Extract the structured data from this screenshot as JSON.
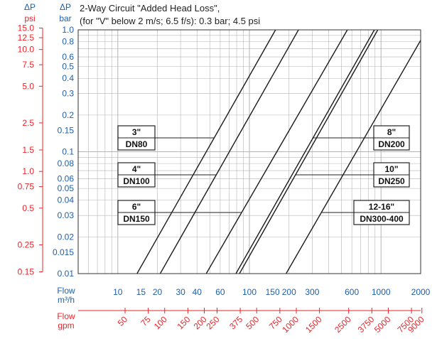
{
  "chart_data": {
    "type": "line",
    "title": "2-Way Circuit \"Added Head Loss\",",
    "subtitle": "(for \"V\" below 2 m/s; 6.5 f/s): 0.3 bar; 4.5 psi",
    "y_left_unit_symbol": "ΔP",
    "y_left_unit": "psi",
    "y_right_unit_symbol": "ΔP",
    "y_right_unit": "bar",
    "x_label": "Flow",
    "x_unit": "m³/h",
    "x2_label": "Flow",
    "x2_unit": "gpm",
    "x_scale": "log",
    "y_scale": "log",
    "xlim": [
      5,
      2000
    ],
    "ylim": [
      0.01,
      1.0
    ],
    "grid": true,
    "y_bar_ticks": [
      {
        "label": "1.0",
        "value": 1.0
      },
      {
        "label": "0.8",
        "value": 0.8
      },
      {
        "label": "0.6",
        "value": 0.6
      },
      {
        "label": "0.5",
        "value": 0.5
      },
      {
        "label": "0.4",
        "value": 0.4
      },
      {
        "label": "0.3",
        "value": 0.3
      },
      {
        "label": "0.2",
        "value": 0.2
      },
      {
        "label": "0.15",
        "value": 0.15
      },
      {
        "label": "0.1",
        "value": 0.1
      },
      {
        "label": "0.08",
        "value": 0.08
      },
      {
        "label": "0.06",
        "value": 0.06
      },
      {
        "label": "0.05",
        "value": 0.05
      },
      {
        "label": "0.04",
        "value": 0.04
      },
      {
        "label": "0.03",
        "value": 0.03
      },
      {
        "label": "0.02",
        "value": 0.02
      },
      {
        "label": "0.015",
        "value": 0.015
      },
      {
        "label": "0.01",
        "value": 0.01
      }
    ],
    "y_psi_ticks": [
      {
        "label": "15.0",
        "value": 15.0
      },
      {
        "label": "12.5",
        "value": 12.5
      },
      {
        "label": "10.0",
        "value": 10.0
      },
      {
        "label": "7.5",
        "value": 7.5
      },
      {
        "label": "5.0",
        "value": 5.0
      },
      {
        "label": "2.5",
        "value": 2.5
      },
      {
        "label": "1.5",
        "value": 1.5
      },
      {
        "label": "1.0",
        "value": 1.0
      },
      {
        "label": "0.75",
        "value": 0.75
      },
      {
        "label": "0.5",
        "value": 0.5
      },
      {
        "label": "0.25",
        "value": 0.25
      },
      {
        "label": "0.15",
        "value": 0.15
      }
    ],
    "x_m3h_ticks": [
      {
        "label": "10",
        "value": 10
      },
      {
        "label": "15",
        "value": 15
      },
      {
        "label": "20",
        "value": 20
      },
      {
        "label": "30",
        "value": 30
      },
      {
        "label": "40",
        "value": 40
      },
      {
        "label": "60",
        "value": 60
      },
      {
        "label": "100",
        "value": 100
      },
      {
        "label": "150",
        "value": 150
      },
      {
        "label": "200",
        "value": 200
      },
      {
        "label": "300",
        "value": 300
      },
      {
        "label": "600",
        "value": 600
      },
      {
        "label": "1000",
        "value": 1000
      },
      {
        "label": "2000",
        "value": 2000
      }
    ],
    "x_gpm_ticks": [
      {
        "label": "50",
        "value": 50
      },
      {
        "label": "75",
        "value": 75
      },
      {
        "label": "100",
        "value": 100
      },
      {
        "label": "150",
        "value": 150
      },
      {
        "label": "200",
        "value": 200
      },
      {
        "label": "250",
        "value": 250
      },
      {
        "label": "375",
        "value": 375
      },
      {
        "label": "500",
        "value": 500
      },
      {
        "label": "750",
        "value": 750
      },
      {
        "label": "1000",
        "value": 1000
      },
      {
        "label": "1500",
        "value": 1500
      },
      {
        "label": "2500",
        "value": 2500
      },
      {
        "label": "3750",
        "value": 3750
      },
      {
        "label": "5000",
        "value": 5000
      },
      {
        "label": "7500",
        "value": 7500
      },
      {
        "label": "9000",
        "value": 9000
      }
    ],
    "series": [
      {
        "size": "3\"",
        "dn": "DN80",
        "points": [
          [
            14,
            0.01
          ],
          [
            158,
            1.0
          ]
        ]
      },
      {
        "size": "4\"",
        "dn": "DN100",
        "points": [
          [
            21,
            0.01
          ],
          [
            236,
            1.0
          ]
        ]
      },
      {
        "size": "6\"",
        "dn": "DN150",
        "points": [
          [
            47,
            0.01
          ],
          [
            555,
            1.0
          ]
        ]
      },
      {
        "size": "8\"",
        "dn": "DN200",
        "points": [
          [
            79,
            0.01
          ],
          [
            890,
            1.0
          ]
        ]
      },
      {
        "size": "10\"",
        "dn": "DN250",
        "points": [
          [
            84,
            0.01
          ],
          [
            945,
            1.0
          ]
        ]
      },
      {
        "size": "12-16\"",
        "dn": "DN300-400",
        "points": [
          [
            190,
            0.01
          ],
          [
            2000,
            0.82
          ]
        ]
      }
    ],
    "line_color": "#1a1a1a",
    "grid_color": "#b5b5b5",
    "axis_label_color": "#1f5fa8",
    "gpm_color": "#e8242a"
  }
}
